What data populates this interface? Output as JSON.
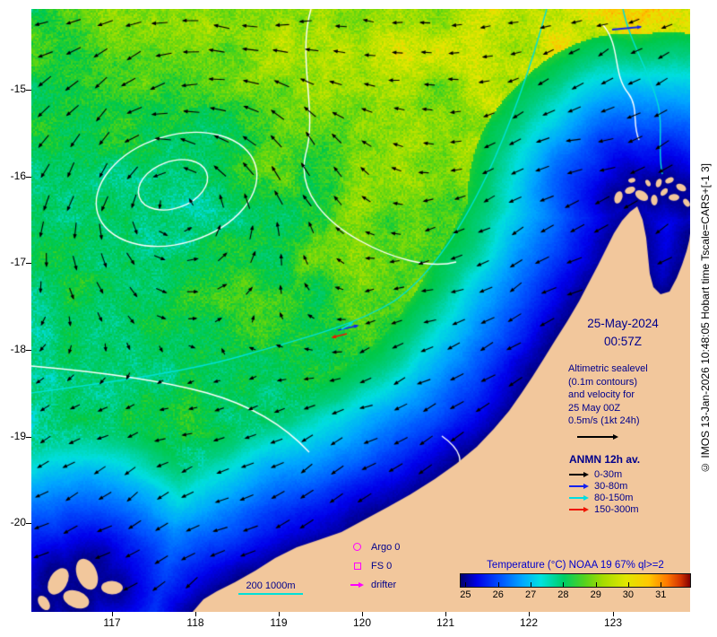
{
  "map": {
    "timestamp": {
      "date": "25-May-2024",
      "time": "00:57Z"
    },
    "altimetric_note": {
      "lines": [
        "Altimetric sealevel",
        "(0.1m contours)",
        "and velocity for",
        "25 May 00Z",
        "0.5m/s (1kt 24h)"
      ]
    },
    "anmn_legend": {
      "title": "ANMN 12h av.",
      "items": [
        {
          "label": "0-30m",
          "color": "#000000"
        },
        {
          "label": "30-80m",
          "color": "#1522ee"
        },
        {
          "label": "80-150m",
          "color": "#00dde2"
        },
        {
          "label": "150-300m",
          "color": "#ee1500"
        }
      ]
    },
    "platform_legend": {
      "items": [
        {
          "label": "Argo 0",
          "symbol": "circle"
        },
        {
          "label": "FS 0",
          "symbol": "square"
        },
        {
          "label": "drifter",
          "symbol": "arrow"
        }
      ]
    },
    "depth_contours_label": "200 1000m",
    "colorbar": {
      "title": "Temperature (°C) NOAA 19 67% ql>=2",
      "ticks": [
        "25",
        "26",
        "27",
        "28",
        "29",
        "30",
        "31"
      ],
      "gradient": [
        "#00006e 0%",
        "#0000e6 7%",
        "#0050ff 17%",
        "#00a8ff 27%",
        "#00e2de 35%",
        "#00cd64 45%",
        "#55d21e 54%",
        "#a5dc00 62%",
        "#e1e600 72%",
        "#ffc800 82%",
        "#ff7800 90%",
        "#d23200 96%",
        "#820000 100%"
      ]
    }
  },
  "axes": {
    "x_ticks": [
      "117",
      "118",
      "119",
      "120",
      "121",
      "122",
      "123"
    ],
    "y_ticks": [
      "-15",
      "-16",
      "-17",
      "-18",
      "-19",
      "-20"
    ]
  },
  "copyright": "© IMOS 13-Jan-2026 10:48:05 Hobart time Tscale=CARS+[-1 3]",
  "colors": {
    "land": "#f2c79c",
    "annotation_text": "#00008b",
    "colorbar_title_text": "#0000cd",
    "sealevel_contour": "#ffffff",
    "bathymetry_contour": "#00e0d8",
    "platform_magenta": "#ff00ff",
    "vector_black": "#000000"
  }
}
